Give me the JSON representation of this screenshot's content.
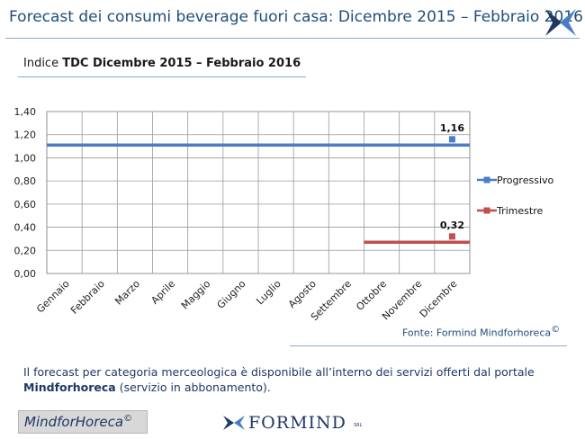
{
  "header": {
    "title": "Forecast dei consumi beverage fuori casa: Dicembre 2015 – Febbraio 2016"
  },
  "subtitle": {
    "prefix": "Indice ",
    "bold": "TDC Dicembre 2015 – Febbraio 2016"
  },
  "chart_data": {
    "type": "line",
    "categories": [
      "Gennaio",
      "Febbraio",
      "Marzo",
      "Aprile",
      "Maggio",
      "Giugno",
      "Luglio",
      "Agosto",
      "Settembre",
      "Ottobre",
      "Novembre",
      "Dicembre"
    ],
    "ylim": [
      0,
      1.4
    ],
    "yticks": [
      "0,00",
      "0,20",
      "0,40",
      "0,60",
      "0,80",
      "1,00",
      "1,20",
      "1,40"
    ],
    "grid": true,
    "legend_position": "right",
    "series": [
      {
        "name": "Progressivo",
        "color": "#4a7ec4",
        "value": 1.11,
        "start_index": 0,
        "point": 1.16,
        "point_label": "1,16"
      },
      {
        "name": "Trimestre",
        "color": "#c0504d",
        "value": 0.27,
        "start_index": 9,
        "point": 0.32,
        "point_label": "0,32"
      }
    ]
  },
  "source": {
    "text": "Fonte: Formind Mindforhoreca",
    "mark": "©"
  },
  "note": {
    "line1": "Il forecast per categoria merceologica è disponibile all’interno dei servizi offerti dal portale",
    "bold": "Mindforhoreca",
    "rest": " (servizio in abbonamento)."
  },
  "footer": {
    "brand": "MindforHoreca",
    "brand_mark": "©",
    "logo_text": "FORMIND",
    "logo_srl": "SRL"
  }
}
